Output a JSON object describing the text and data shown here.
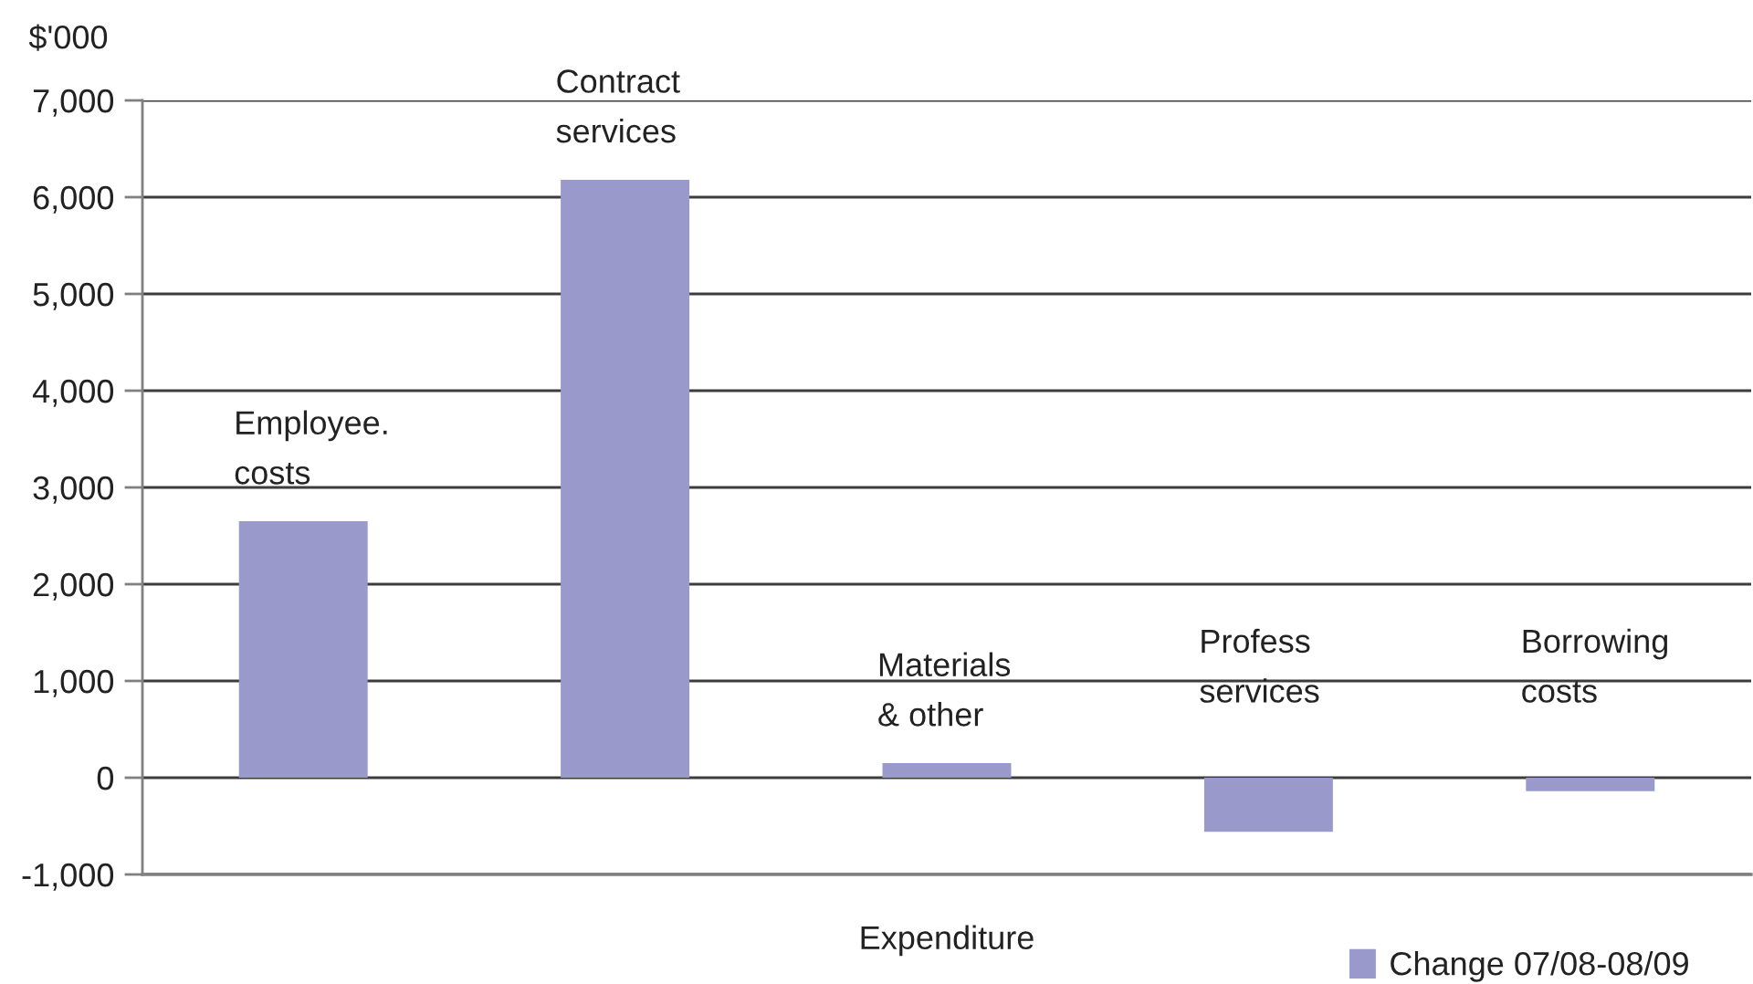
{
  "chart_data": {
    "type": "bar",
    "categories": [
      "Employee. costs",
      "Contract services",
      "Materials & other",
      "Profess services",
      "Borrowing costs"
    ],
    "series": [
      {
        "name": "Change 07/08-08/09",
        "color": "#9999cc",
        "values": [
          2650,
          6180,
          150,
          -560,
          -140
        ]
      }
    ],
    "xlabel": "Expenditure",
    "ylabel": "$'000",
    "ylim": [
      -1000,
      7000
    ],
    "yticks": [
      {
        "value": -1000,
        "label": "-1,000"
      },
      0,
      {
        "value": 1000,
        "label": "1,000"
      },
      {
        "value": 2000,
        "label": "2,000"
      },
      {
        "value": 3000,
        "label": "3,000"
      },
      {
        "value": 4000,
        "label": "4,000"
      },
      {
        "value": 5000,
        "label": "5,000"
      },
      {
        "value": 6000,
        "label": "6,000"
      },
      {
        "value": 7000,
        "label": "7,000"
      }
    ],
    "grid": "y",
    "legend": "bottom right",
    "tick_labels": "y"
  }
}
